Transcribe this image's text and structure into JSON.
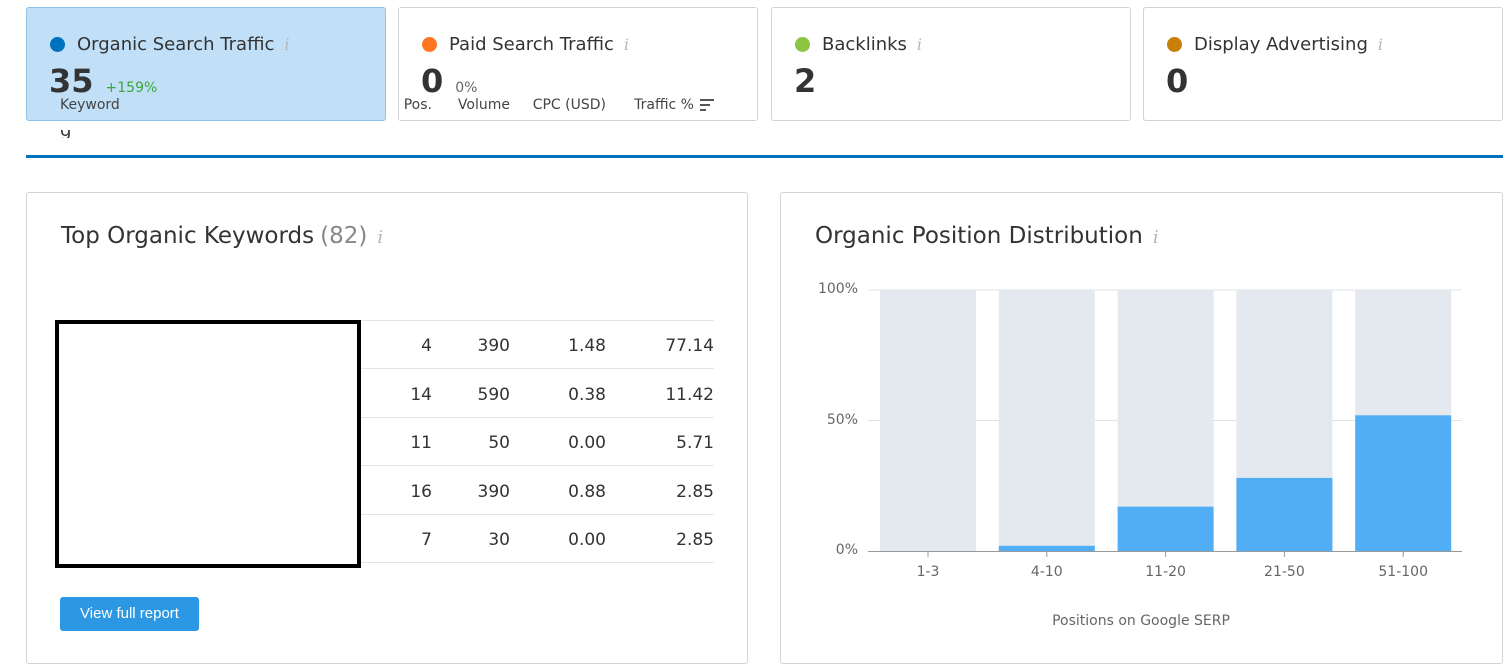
{
  "cards": [
    {
      "title": "Organic Search Traffic",
      "value": "35",
      "delta": "+159%",
      "dot_color": "#0071bc",
      "active": true,
      "info": "i"
    },
    {
      "title": "Paid Search Traffic",
      "value": "0",
      "delta": "0%",
      "dot_color": "#ff7621",
      "active": false,
      "info": "i"
    },
    {
      "title": "Backlinks",
      "value": "2",
      "delta": "",
      "dot_color": "#8bc541",
      "active": false,
      "info": "i"
    },
    {
      "title": "Display Advertising",
      "value": "0",
      "delta": "",
      "dot_color": "#c87f0a",
      "active": false,
      "info": "i"
    }
  ],
  "keywords_panel": {
    "title": "Top Organic Keywords",
    "count": "(82)",
    "info": "i",
    "columns": {
      "keyword": "Keyword",
      "pos": "Pos.",
      "volume": "Volume",
      "cpc": "CPC (USD)",
      "traffic": "Traffic %"
    },
    "rows": [
      {
        "pos": "4",
        "volume": "390",
        "cpc": "1.48",
        "traffic": "77.14"
      },
      {
        "pos": "14",
        "volume": "590",
        "cpc": "0.38",
        "traffic": "11.42"
      },
      {
        "pos": "11",
        "volume": "50",
        "cpc": "0.00",
        "traffic": "5.71"
      },
      {
        "pos": "16",
        "volume": "390",
        "cpc": "0.88",
        "traffic": "2.85"
      },
      {
        "pos": "7",
        "volume": "30",
        "cpc": "0.00",
        "traffic": "2.85"
      }
    ],
    "button_label": "View full report"
  },
  "distribution_panel": {
    "title": "Organic Position Distribution",
    "info": "i"
  },
  "chart_data": {
    "type": "bar",
    "categories": [
      "1-3",
      "4-10",
      "11-20",
      "21-50",
      "51-100"
    ],
    "values": [
      0,
      2,
      17,
      28,
      52
    ],
    "ylim": [
      0,
      100
    ],
    "y_ticks": [
      "0%",
      "50%",
      "100%"
    ],
    "xlabel": "Positions on Google SERP",
    "ylabel": "",
    "bar_color": "#51aef4",
    "background_bar_color": "#e3e9ef",
    "grid": true
  }
}
